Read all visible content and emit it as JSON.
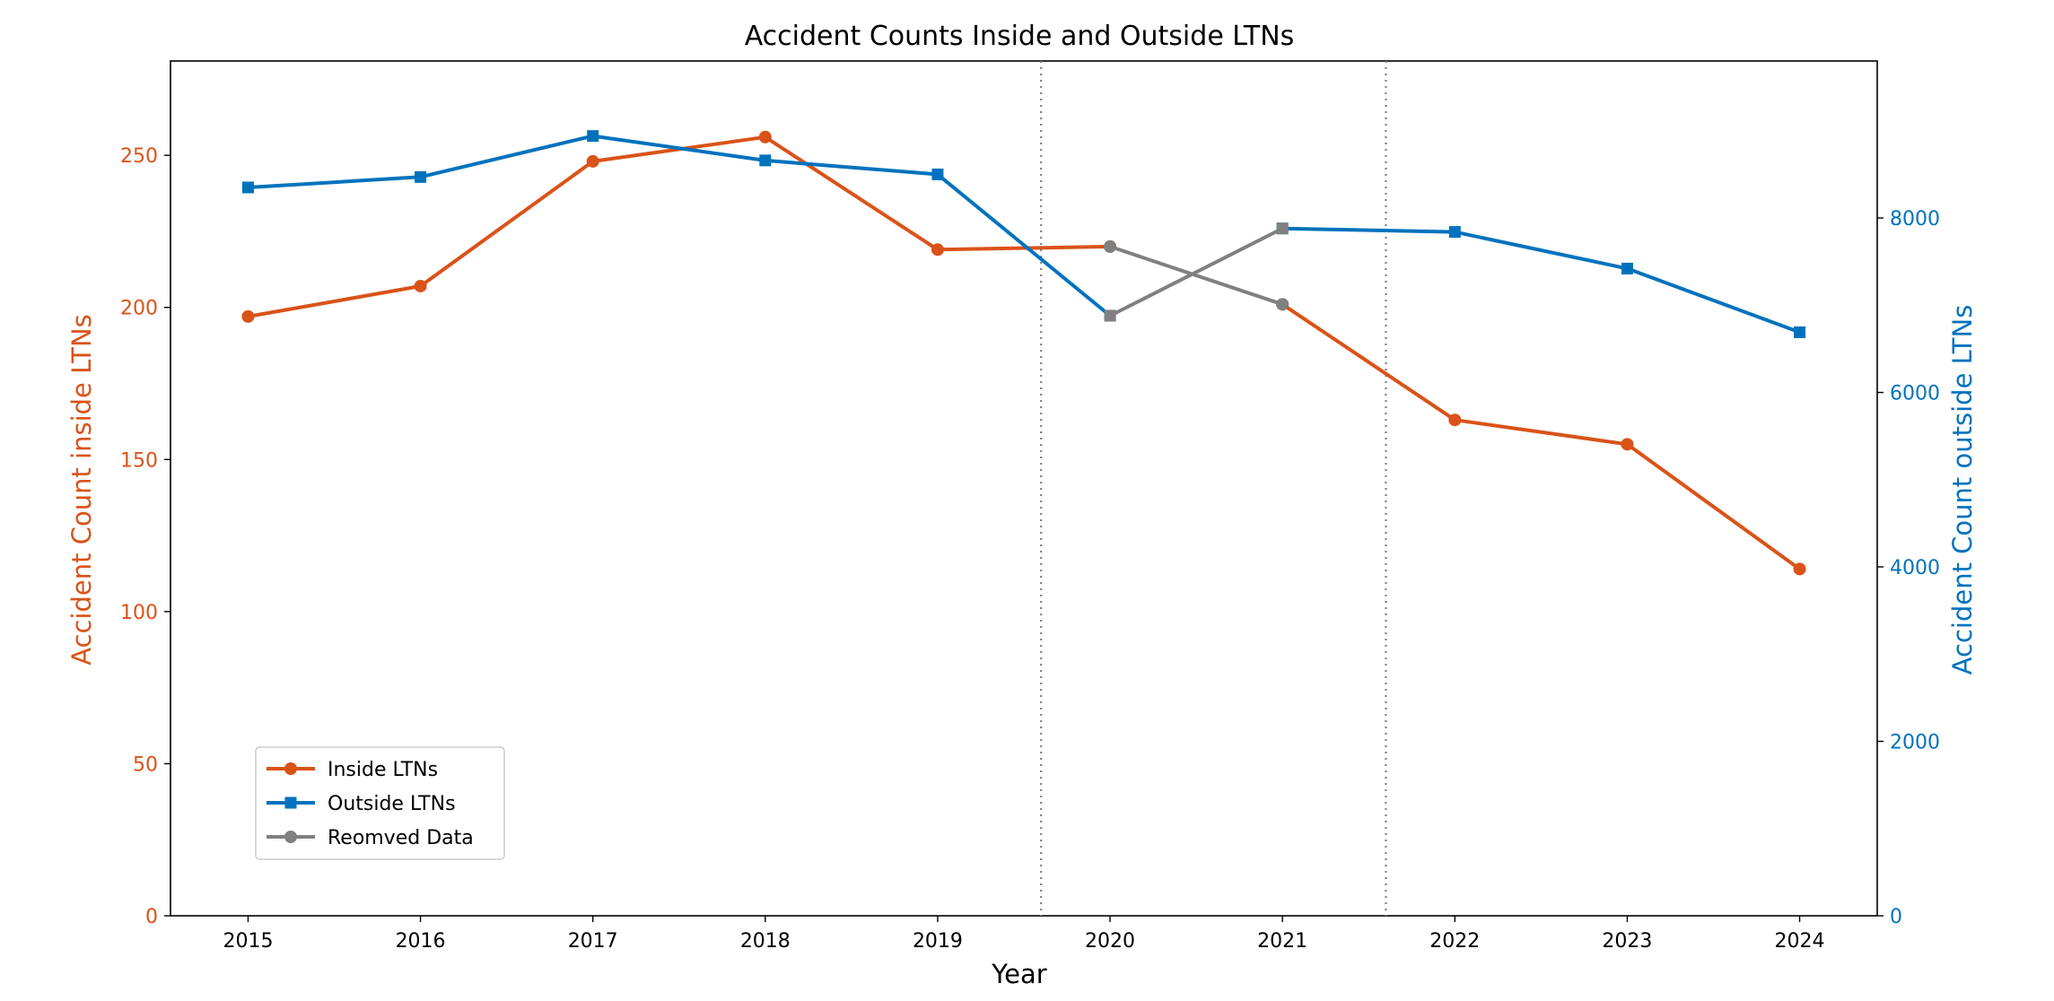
{
  "chart_data": {
    "type": "line",
    "title": "Accident Counts Inside and Outside LTNs",
    "xlabel": "Year",
    "ylabel_left": "Accident Count inside LTNs",
    "ylabel_right": "Accident Count outside LTNs",
    "x": [
      2015,
      2016,
      2017,
      2018,
      2019,
      2020,
      2021,
      2022,
      2023,
      2024
    ],
    "xlim": [
      2014.55,
      2024.45
    ],
    "ylim_left": [
      0,
      281
    ],
    "ylim_right": [
      0,
      9800
    ],
    "yticks_left": [
      0,
      50,
      100,
      150,
      200,
      250
    ],
    "yticks_right": [
      0,
      2000,
      4000,
      6000,
      8000
    ],
    "vertical_lines": [
      2019.6,
      2021.6
    ],
    "grid": false,
    "legend_position": "lower-left",
    "series": [
      {
        "name": "Inside LTNs",
        "axis": "left",
        "color": "#d95319",
        "marker": "circle",
        "segments": [
          {
            "x": [
              2015,
              2016,
              2017,
              2018,
              2019,
              2020
            ],
            "y": [
              197,
              207,
              248,
              256,
              219,
              220
            ]
          },
          {
            "x": [
              2021,
              2022,
              2023,
              2024
            ],
            "y": [
              201,
              163,
              155,
              114
            ]
          }
        ]
      },
      {
        "name": "Outside LTNs",
        "axis": "right",
        "color": "#0072bd",
        "marker": "square",
        "segments": [
          {
            "x": [
              2015,
              2016,
              2017,
              2018,
              2019,
              2020
            ],
            "y": [
              8350,
              8470,
              8940,
              8660,
              8500,
              6880
            ]
          },
          {
            "x": [
              2021,
              2022,
              2023,
              2024
            ],
            "y": [
              7880,
              7840,
              7420,
              6690
            ]
          }
        ]
      },
      {
        "name": "Reomved Data",
        "axis": "mixed",
        "color": "#808080",
        "marker": "circle",
        "segments": [
          {
            "axis": "left",
            "x": [
              2020,
              2021
            ],
            "y": [
              220,
              201
            ]
          },
          {
            "axis": "right",
            "x": [
              2020,
              2021
            ],
            "y": [
              6880,
              7880
            ]
          }
        ]
      }
    ],
    "axis_colors": {
      "left": "#d95319",
      "right": "#0072bd"
    }
  }
}
